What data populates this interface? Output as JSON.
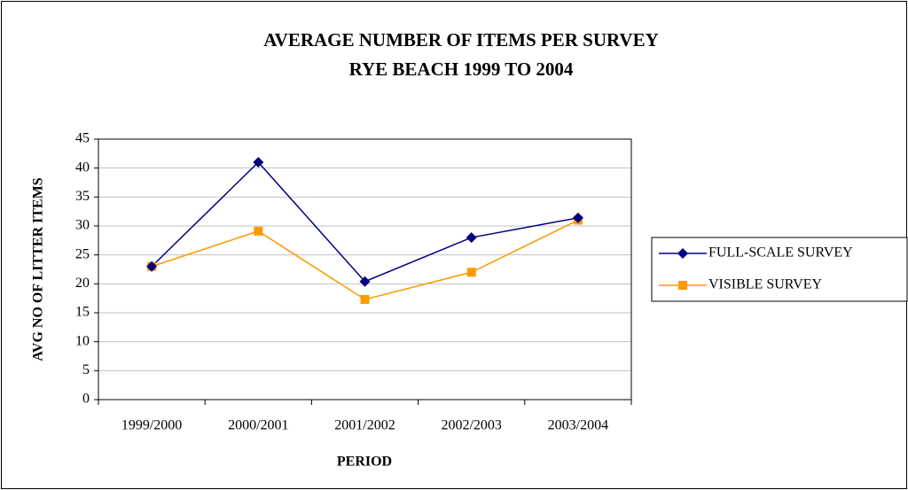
{
  "chart_data": {
    "type": "line",
    "title": [
      "AVERAGE NUMBER OF ITEMS PER SURVEY",
      "RYE BEACH 1999 TO 2004"
    ],
    "x_label": "PERIOD",
    "y_label": "AVG NO OF LITTER ITEMS",
    "categories": [
      "1999/2000",
      "2000/2001",
      "2001/2002",
      "2002/2003",
      "2003/2004"
    ],
    "series": [
      {
        "name": "FULL-SCALE SURVEY",
        "color": "#000080",
        "marker": "diamond",
        "values": [
          23,
          41,
          20.4,
          28,
          31.4
        ]
      },
      {
        "name": "VISIBLE SURVEY",
        "color": "#ff9900",
        "marker": "square",
        "values": [
          23,
          29.1,
          17.3,
          22,
          31
        ]
      }
    ],
    "ylim": [
      0,
      45
    ],
    "yticks": [
      0,
      5,
      10,
      15,
      20,
      25,
      30,
      35,
      40,
      45
    ],
    "grid": true,
    "legend": "right"
  }
}
